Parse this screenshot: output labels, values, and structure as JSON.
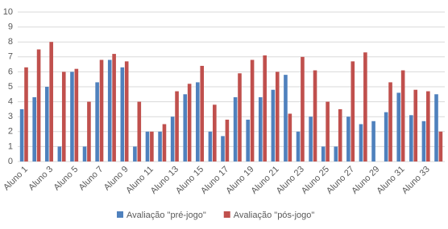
{
  "chart_data": {
    "type": "bar",
    "categories": [
      "Aluno 1",
      null,
      "Aluno 3",
      null,
      "Aluno 5",
      null,
      "Aluno 7",
      null,
      "Aluno 9",
      null,
      "Aluno 11",
      null,
      "Aluno 13",
      null,
      "Aluno 15",
      null,
      "Aluno 17",
      null,
      "Aluno 19",
      null,
      "Aluno 21",
      null,
      "Aluno 23",
      null,
      "Aluno 25",
      null,
      "Aluno 27",
      null,
      "Aluno 29",
      null,
      "Aluno 31",
      null,
      "Aluno 33",
      null
    ],
    "series": [
      {
        "name": "Avaliação \"pré-jogo\"",
        "color": "#4f81bd",
        "values": [
          3.5,
          4.3,
          5.0,
          1.0,
          6.0,
          1.0,
          5.3,
          6.8,
          6.3,
          1.0,
          2.0,
          2.0,
          3.0,
          4.5,
          5.3,
          2.0,
          1.7,
          4.3,
          2.8,
          4.3,
          4.8,
          5.8,
          2.0,
          3.0,
          1.0,
          1.0,
          3.0,
          2.5,
          2.7,
          3.3,
          4.6,
          3.1,
          2.7,
          4.5
        ]
      },
      {
        "name": "Avaliação \"pós-jogo\"",
        "color": "#c0504d",
        "values": [
          6.3,
          7.5,
          8.0,
          6.0,
          6.2,
          4.0,
          6.8,
          7.2,
          6.7,
          4.0,
          2.0,
          2.5,
          4.7,
          5.2,
          6.4,
          3.8,
          2.8,
          5.9,
          6.8,
          7.1,
          6.0,
          3.2,
          7.0,
          6.1,
          4.0,
          3.5,
          6.7,
          7.3,
          0,
          5.3,
          6.1,
          4.8,
          4.7,
          2.0
        ]
      }
    ],
    "ylim": [
      0,
      10
    ],
    "yticks": [
      0,
      1,
      2,
      3,
      4,
      5,
      6,
      7,
      8,
      9,
      10
    ],
    "grid": true,
    "legend": "bottom"
  }
}
